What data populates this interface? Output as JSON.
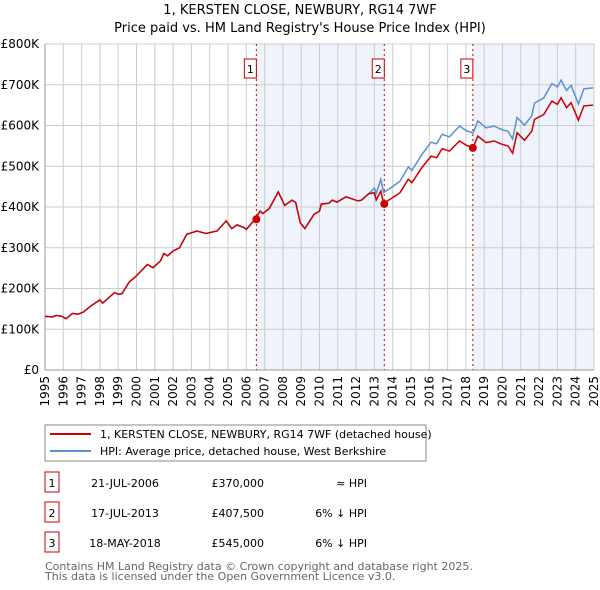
{
  "title": "1, KERSTEN CLOSE, NEWBURY, RG14 7WF",
  "subtitle": "Price paid vs. HM Land Registry's House Price Index (HPI)",
  "colors": {
    "property": "#cc0000",
    "hpi": "#5b8fd6",
    "shade": "#eef3fc",
    "grid": "#cccccc"
  },
  "chart_data": {
    "type": "line",
    "xlim": [
      1995,
      2025
    ],
    "ylim": [
      0,
      800000
    ],
    "y_ticks": [
      {
        "v": 0,
        "label": "£0"
      },
      {
        "v": 100000,
        "label": "£100K"
      },
      {
        "v": 200000,
        "label": "£200K"
      },
      {
        "v": 300000,
        "label": "£300K"
      },
      {
        "v": 400000,
        "label": "£400K"
      },
      {
        "v": 500000,
        "label": "£500K"
      },
      {
        "v": 600000,
        "label": "£600K"
      },
      {
        "v": 700000,
        "label": "£700K"
      },
      {
        "v": 800000,
        "label": "£800K"
      }
    ],
    "x_ticks": [
      "1995",
      "1996",
      "1997",
      "1998",
      "1999",
      "2000",
      "2001",
      "2002",
      "2003",
      "2004",
      "2005",
      "2006",
      "2007",
      "2008",
      "2009",
      "2010",
      "2011",
      "2012",
      "2013",
      "2014",
      "2015",
      "2016",
      "2017",
      "2018",
      "2019",
      "2020",
      "2021",
      "2022",
      "2023",
      "2024",
      "2025"
    ],
    "grid": true,
    "shaded_ranges": [
      [
        2006.55,
        2013.54
      ],
      [
        2018.38,
        2025
      ]
    ],
    "series": [
      {
        "name": "1, KERSTEN CLOSE, NEWBURY, RG14 7WF (detached house)",
        "key": "property",
        "points": [
          [
            1995,
            132
          ],
          [
            1995.4,
            130
          ],
          [
            1995.6,
            134
          ],
          [
            1995.9,
            132
          ],
          [
            1996.15,
            126
          ],
          [
            1996.5,
            139
          ],
          [
            1996.8,
            137
          ],
          [
            1997.1,
            142
          ],
          [
            1997.5,
            157
          ],
          [
            1998,
            172
          ],
          [
            1998.15,
            164
          ],
          [
            1998.8,
            190
          ],
          [
            1999,
            186
          ],
          [
            1999.2,
            187
          ],
          [
            1999.6,
            216
          ],
          [
            1999.9,
            227
          ],
          [
            2000.6,
            259
          ],
          [
            2000.9,
            251
          ],
          [
            2001.3,
            267
          ],
          [
            2001.5,
            286
          ],
          [
            2001.7,
            280
          ],
          [
            2002,
            292
          ],
          [
            2002.35,
            300
          ],
          [
            2002.75,
            333
          ],
          [
            2003.3,
            341
          ],
          [
            2003.8,
            335
          ],
          [
            2004.4,
            341
          ],
          [
            2004.9,
            366
          ],
          [
            2005.2,
            347
          ],
          [
            2005.5,
            356
          ],
          [
            2005.9,
            349
          ],
          [
            2006,
            345
          ],
          [
            2006.5,
            371
          ],
          [
            2006.75,
            390
          ],
          [
            2006.9,
            384
          ],
          [
            2007.25,
            396
          ],
          [
            2007.75,
            437
          ],
          [
            2008.1,
            404
          ],
          [
            2008.5,
            417
          ],
          [
            2008.7,
            411
          ],
          [
            2008.95,
            361
          ],
          [
            2009.2,
            347
          ],
          [
            2009.7,
            382
          ],
          [
            2010,
            390
          ],
          [
            2010.1,
            407
          ],
          [
            2010.5,
            409
          ],
          [
            2010.7,
            417
          ],
          [
            2010.95,
            412
          ],
          [
            2011.45,
            425
          ],
          [
            2012.1,
            415
          ],
          [
            2012.3,
            417
          ],
          [
            2012.7,
            433
          ],
          [
            2013,
            435
          ],
          [
            2013.1,
            417
          ],
          [
            2013.35,
            439
          ],
          [
            2013.5,
            409
          ],
          [
            2013.9,
            420
          ],
          [
            2014.4,
            435
          ],
          [
            2014.85,
            468
          ],
          [
            2015.05,
            460
          ],
          [
            2015.6,
            497
          ],
          [
            2016.1,
            525
          ],
          [
            2016.4,
            521
          ],
          [
            2016.7,
            543
          ],
          [
            2017.1,
            537
          ],
          [
            2017.65,
            562
          ],
          [
            2018.05,
            551
          ],
          [
            2018.4,
            546
          ],
          [
            2018.65,
            574
          ],
          [
            2019.1,
            558
          ],
          [
            2019.55,
            562
          ],
          [
            2019.95,
            554
          ],
          [
            2020.3,
            550
          ],
          [
            2020.55,
            532
          ],
          [
            2020.8,
            582
          ],
          [
            2021.2,
            564
          ],
          [
            2021.6,
            586
          ],
          [
            2021.75,
            615
          ],
          [
            2022.25,
            627
          ],
          [
            2022.7,
            660
          ],
          [
            2023,
            652
          ],
          [
            2023.2,
            668
          ],
          [
            2023.5,
            644
          ],
          [
            2023.75,
            656
          ],
          [
            2024.15,
            613
          ],
          [
            2024.45,
            648
          ],
          [
            2024.95,
            650
          ]
        ]
      },
      {
        "name": "HPI: Average price, detached house, West Berkshire",
        "key": "hpi",
        "ratio_after_2013_3": 1.065
      }
    ],
    "sales": [
      {
        "id": "1",
        "x": 2006.55,
        "value": 370000
      },
      {
        "id": "2",
        "x": 2013.54,
        "value": 407500
      },
      {
        "id": "3",
        "x": 2018.38,
        "value": 545000
      }
    ]
  },
  "legend": [
    "1, KERSTEN CLOSE, NEWBURY, RG14 7WF (detached house)",
    "HPI: Average price, detached house, West Berkshire"
  ],
  "transactions": [
    {
      "id": "1",
      "date": "21-JUL-2006",
      "price": "£370,000",
      "hpi": "≈ HPI"
    },
    {
      "id": "2",
      "date": "17-JUL-2013",
      "price": "£407,500",
      "hpi": "6% ↓ HPI"
    },
    {
      "id": "3",
      "date": "18-MAY-2018",
      "price": "£545,000",
      "hpi": "6% ↓ HPI"
    }
  ],
  "footer": [
    "Contains HM Land Registry data © Crown copyright and database right 2025.",
    "This data is licensed under the Open Government Licence v3.0."
  ]
}
